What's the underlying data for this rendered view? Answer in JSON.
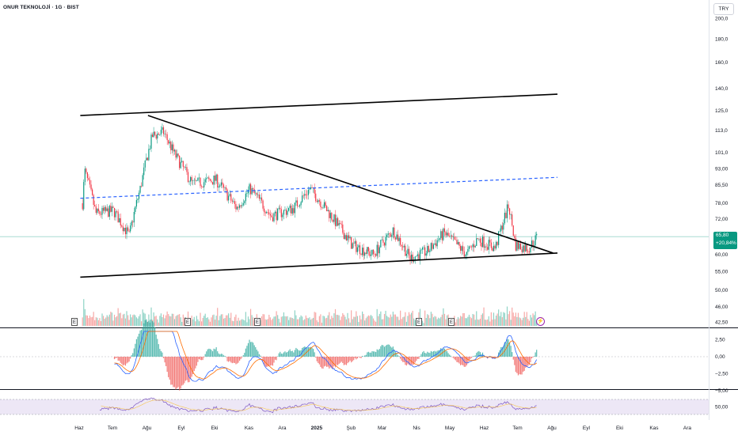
{
  "header": {
    "symbol_title": "ONUR TEKNOLOJİ · 1G · BIST",
    "currency_button": "TRY"
  },
  "price_tag": {
    "price": "65,80",
    "change": "+20,84%",
    "color": "#089981"
  },
  "earnings_badges": [
    "E",
    "E",
    "E",
    "E",
    "E"
  ],
  "event_icon": "lightning-icon",
  "colors": {
    "up": "#089981",
    "down": "#f23645",
    "trendline": "#000000",
    "dashed_line": "#2962ff",
    "macd": "#2962ff",
    "signal": "#ff6d00",
    "rsi": "#7e57c2",
    "rsi_band": "#ede7f6"
  },
  "chart_data": [
    {
      "type": "candlestick",
      "title": "ONUR TEKNOLOJİ · 1G · BIST",
      "y_scale": "log",
      "y_ticks": [
        "200,0",
        "180,0",
        "160,0",
        "140,0",
        "125,0",
        "113,0",
        "101,0",
        "93,00",
        "85,50",
        "78,00",
        "72,00",
        "65,80",
        "60,00",
        "55,00",
        "50,00",
        "46,00",
        "42,50"
      ],
      "x_ticks": [
        "Haz",
        "Tem",
        "Ağu",
        "Eyl",
        "Eki",
        "Kas",
        "Ara",
        "2025",
        "Şub",
        "Mar",
        "Nis",
        "May",
        "Haz",
        "Tem",
        "Ağu",
        "Eyl",
        "Eki",
        "Kas",
        "Ara"
      ],
      "last_price": 65.8,
      "approx_daily_closes": [
        {
          "date": "2024-06-01",
          "close": 64
        },
        {
          "date": "2024-06-05",
          "close": 92
        },
        {
          "date": "2024-06-15",
          "close": 74
        },
        {
          "date": "2024-07-01",
          "close": 75
        },
        {
          "date": "2024-07-15",
          "close": 66
        },
        {
          "date": "2024-07-25",
          "close": 84
        },
        {
          "date": "2024-08-05",
          "close": 110
        },
        {
          "date": "2024-08-15",
          "close": 112
        },
        {
          "date": "2024-08-25",
          "close": 100
        },
        {
          "date": "2024-09-10",
          "close": 86
        },
        {
          "date": "2024-10-01",
          "close": 88
        },
        {
          "date": "2024-10-20",
          "close": 76
        },
        {
          "date": "2024-11-01",
          "close": 84
        },
        {
          "date": "2024-11-20",
          "close": 73
        },
        {
          "date": "2024-12-10",
          "close": 76
        },
        {
          "date": "2024-12-25",
          "close": 84
        },
        {
          "date": "2025-01-15",
          "close": 72
        },
        {
          "date": "2025-02-01",
          "close": 63
        },
        {
          "date": "2025-02-20",
          "close": 60
        },
        {
          "date": "2025-03-10",
          "close": 68
        },
        {
          "date": "2025-03-25",
          "close": 59
        },
        {
          "date": "2025-04-10",
          "close": 61
        },
        {
          "date": "2025-04-25",
          "close": 67
        },
        {
          "date": "2025-05-15",
          "close": 60
        },
        {
          "date": "2025-05-25",
          "close": 65
        },
        {
          "date": "2025-06-10",
          "close": 62
        },
        {
          "date": "2025-06-22",
          "close": 77
        },
        {
          "date": "2025-06-28",
          "close": 63
        },
        {
          "date": "2025-07-10",
          "close": 62
        },
        {
          "date": "2025-07-18",
          "close": 65.8
        }
      ],
      "drawings": [
        {
          "kind": "trendline",
          "style": "solid",
          "from": {
            "date": "2024-06-01",
            "price": 122
          },
          "to": {
            "date": "2025-08-05",
            "price": 136
          }
        },
        {
          "kind": "trendline",
          "style": "solid",
          "from": {
            "date": "2024-08-01",
            "price": 122
          },
          "to": {
            "date": "2025-08-01",
            "price": 60.5
          }
        },
        {
          "kind": "trendline",
          "style": "solid",
          "from": {
            "date": "2024-06-01",
            "price": 53.5
          },
          "to": {
            "date": "2025-08-05",
            "price": 60.5
          }
        },
        {
          "kind": "trendline",
          "style": "dashed",
          "from": {
            "date": "2024-06-01",
            "price": 80
          },
          "to": {
            "date": "2025-08-05",
            "price": 89
          }
        }
      ]
    },
    {
      "type": "line",
      "indicator": "MACD",
      "y_ticks": [
        "2,50",
        "0,00",
        "−2,50",
        "−5,00"
      ]
    },
    {
      "type": "line",
      "indicator": "RSI",
      "y_ticks": [
        "50,00"
      ]
    }
  ]
}
